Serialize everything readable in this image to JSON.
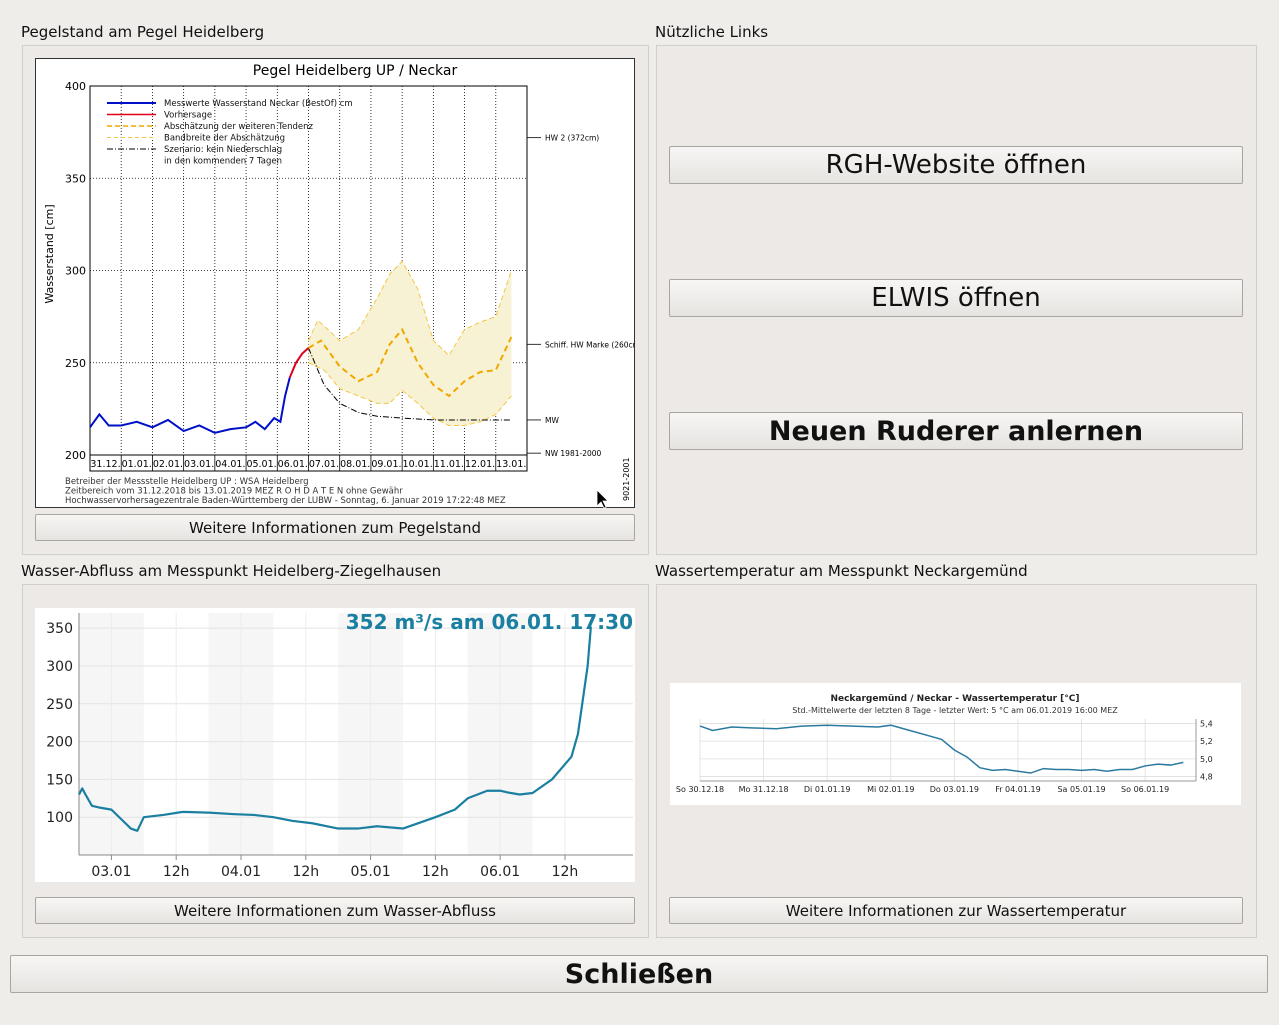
{
  "groups": {
    "pegel": "Pegelstand am Pegel Heidelberg",
    "links": "Nützliche Links",
    "abfluss": "Wasser-Abfluss am Messpunkt Heidelberg-Ziegelhausen",
    "temp": "Wassertemperatur am Messpunkt Neckargemünd"
  },
  "buttons": {
    "pegel_info": "Weitere Informationen zum Pegelstand",
    "rgh": "RGH-Website öffnen",
    "elwis": "ELWIS öffnen",
    "ruderer": "Neuen Ruderer anlernen",
    "abfluss_info": "Weitere Informationen zum Wasser-Abfluss",
    "temp_info": "Weitere Informationen zur Wassertemperatur",
    "close": "Schließen"
  },
  "chart_data": [
    {
      "type": "line",
      "title": "Pegel Heidelberg UP / Neckar",
      "ylabel": "Wasserstand [cm]",
      "ylim": [
        200,
        400
      ],
      "yticks": [
        "200",
        "250",
        "300",
        "350",
        "400"
      ],
      "categories": [
        "31.12.",
        "01.01.",
        "02.01.",
        "03.01.",
        "04.01.",
        "05.01.",
        "06.01.",
        "07.01.",
        "08.01.",
        "09.01.",
        "10.01.",
        "11.01.",
        "12.01.",
        "13.01."
      ],
      "legend": [
        "Messwerte Wasserstand Neckar (BestOf)   cm",
        "Vorhersage",
        "Abschätzung der weiteren Tendenz",
        "Bandbreite der Abschätzung",
        "Szenario: kein Niederschlag",
        "in den kommenden 7 Tagen"
      ],
      "markers": [
        {
          "label": "HW 2 (372cm)",
          "value": 372
        },
        {
          "label": "Schiff. HW Marke (260cm",
          "value": 260
        },
        {
          "label": "MW",
          "value": 219
        },
        {
          "label": "NW 1981-2000",
          "value": 201
        }
      ],
      "series": [
        {
          "name": "Messwerte Wasserstand Neckar (BestOf)",
          "x": [
            0,
            0.3,
            0.6,
            1,
            1.5,
            2,
            2.5,
            3,
            3.5,
            4,
            4.5,
            5,
            5.3,
            5.6,
            5.9,
            6.1,
            6.25,
            6.4
          ],
          "values": [
            215,
            222,
            216,
            216,
            218,
            215,
            219,
            213,
            216,
            212,
            214,
            215,
            218,
            214,
            220,
            218,
            232,
            242
          ]
        },
        {
          "name": "Vorhersage",
          "x": [
            6.4,
            6.6,
            6.8,
            7.0
          ],
          "values": [
            242,
            250,
            255,
            258
          ]
        },
        {
          "name": "Abschätzung der weiteren Tendenz",
          "x": [
            7.0,
            7.4,
            8,
            8.6,
            9.2,
            9.6,
            10.0,
            10.5,
            11,
            11.5,
            12,
            12.5,
            13,
            13.5
          ],
          "values": [
            258,
            262,
            248,
            240,
            245,
            260,
            268,
            250,
            238,
            232,
            240,
            245,
            246,
            264
          ]
        },
        {
          "name": "Bandbreite der Abschätzung (oben)",
          "x": [
            7.0,
            7.3,
            8,
            8.6,
            9.2,
            9.6,
            10.0,
            10.5,
            11,
            11.5,
            12,
            12.5,
            13,
            13.5
          ],
          "values": [
            262,
            273,
            262,
            268,
            285,
            298,
            305,
            290,
            262,
            254,
            268,
            272,
            275,
            300
          ]
        },
        {
          "name": "Bandbreite der Abschätzung (unten)",
          "x": [
            7.0,
            7.5,
            8,
            8.6,
            9.2,
            9.6,
            10.0,
            10.5,
            11,
            11.5,
            12,
            12.5,
            13,
            13.5
          ],
          "values": [
            250,
            246,
            236,
            232,
            228,
            228,
            235,
            228,
            220,
            216,
            216,
            218,
            222,
            232
          ]
        },
        {
          "name": "Szenario: kein Niederschlag",
          "x": [
            7.0,
            7.5,
            8,
            8.6,
            9.2,
            10,
            11,
            12,
            13,
            13.5
          ],
          "values": [
            258,
            238,
            228,
            223,
            221,
            220,
            219,
            219,
            219,
            219
          ]
        }
      ],
      "footer": [
        "Betreiber der Messstelle Heidelberg UP : WSA Heidelberg",
        "Zeitbereich vom 31.12.2018 bis 13.01.2019    MEZ      R O H D A T E N  ohne Gewähr",
        "Hochwasservorhersagezentrale Baden-Württemberg der LUBW - Sonntag, 6. Januar 2019 17:22:48 MEZ"
      ],
      "side_text": "9021-2001"
    },
    {
      "type": "line",
      "title": "352 m³/s am 06.01. 17:30",
      "ylim": [
        50,
        370
      ],
      "yticks": [
        "100",
        "150",
        "200",
        "250",
        "300",
        "350"
      ],
      "xticks": [
        "03.01",
        "12h",
        "04.01",
        "12h",
        "05.01",
        "12h",
        "06.01",
        "12h"
      ],
      "series": [
        {
          "name": "Abfluss",
          "x": [
            0,
            0.05,
            0.1,
            0.2,
            0.3,
            0.5,
            0.8,
            0.9,
            1.0,
            1.3,
            1.6,
            2.0,
            2.4,
            2.7,
            3.0,
            3.3,
            3.6,
            4.0,
            4.3,
            4.6,
            5.0,
            5.5,
            5.8,
            6.0,
            6.3,
            6.5,
            6.6,
            6.8,
            7.0,
            7.3,
            7.6,
            7.7,
            7.75,
            7.8,
            7.85,
            7.9
          ],
          "values": [
            130,
            138,
            130,
            115,
            113,
            110,
            85,
            82,
            100,
            103,
            107,
            106,
            104,
            103,
            100,
            95,
            92,
            85,
            85,
            88,
            85,
            100,
            110,
            125,
            135,
            135,
            133,
            130,
            132,
            150,
            180,
            210,
            240,
            270,
            300,
            352
          ]
        }
      ]
    },
    {
      "type": "line",
      "title": "Neckargemünd / Neckar - Wassertemperatur [°C]",
      "subtitle": "Std.-Mittelwerte der letzten 8 Tage - letzter Wert: 5 °C am 06.01.2019 16:00 MEZ",
      "ylim": [
        4.75,
        5.45
      ],
      "yticks": [
        "4,8",
        "5,0",
        "5,2",
        "5,4"
      ],
      "xticks": [
        "So 30.12.18",
        "Mo 31.12.18",
        "Di 01.01.19",
        "Mi 02.01.19",
        "Do 03.01.19",
        "Fr 04.01.19",
        "Sa 05.01.19",
        "So 06.01.19"
      ],
      "series": [
        {
          "name": "Wassertemperatur",
          "x": [
            0,
            0.2,
            0.5,
            0.8,
            1.2,
            1.6,
            2.0,
            2.4,
            2.8,
            3.0,
            3.3,
            3.6,
            3.8,
            4.0,
            4.2,
            4.4,
            4.6,
            4.8,
            5.0,
            5.2,
            5.4,
            5.6,
            5.8,
            6.0,
            6.2,
            6.4,
            6.6,
            6.8,
            7.0,
            7.2,
            7.4,
            7.6
          ],
          "values": [
            5.37,
            5.32,
            5.36,
            5.35,
            5.34,
            5.37,
            5.38,
            5.37,
            5.36,
            5.38,
            5.32,
            5.26,
            5.22,
            5.1,
            5.02,
            4.9,
            4.87,
            4.88,
            4.86,
            4.84,
            4.89,
            4.88,
            4.88,
            4.87,
            4.88,
            4.86,
            4.88,
            4.88,
            4.92,
            4.94,
            4.93,
            4.96
          ]
        }
      ]
    }
  ]
}
